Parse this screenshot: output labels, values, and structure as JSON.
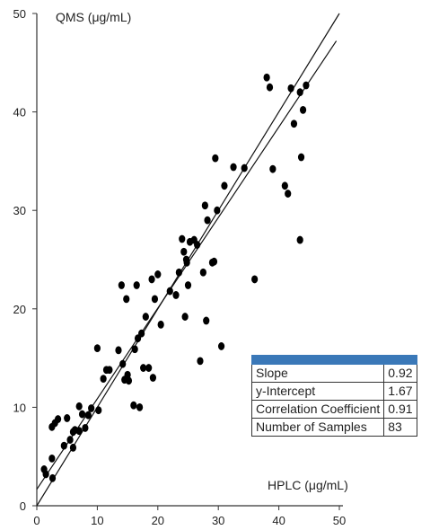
{
  "chart_data": {
    "type": "scatter",
    "xlabel": "HPLC (μg/mL)",
    "ylabel": "QMS (μg/mL)",
    "xlim": [
      0,
      50
    ],
    "ylim": [
      0,
      50
    ],
    "xticks": [
      0,
      10,
      20,
      30,
      40,
      50
    ],
    "yticks": [
      0,
      10,
      20,
      30,
      40,
      50
    ],
    "grid": false,
    "series": [
      {
        "x": [
          1.2,
          1.5,
          2.5,
          2.5,
          2.6,
          3.0,
          3.5,
          4.5,
          5.0,
          5.5,
          6.0,
          6.0,
          6.3,
          7.0,
          7.0,
          7.5,
          8.0,
          8.5,
          9.0,
          10.0,
          10.2,
          11.0,
          11.5,
          12.0,
          13.5,
          14.0,
          14.2,
          14.5,
          14.8,
          15.0,
          15.2,
          16.0,
          16.2,
          16.5,
          16.7,
          17.0,
          17.3,
          17.6,
          18.0,
          18.5,
          19.0,
          19.2,
          19.5,
          20.0,
          20.5,
          22.0,
          23.0,
          23.5,
          24.0,
          24.3,
          24.5,
          24.7,
          24.8,
          25.0,
          25.3,
          26.0,
          26.5,
          27.0,
          27.5,
          27.8,
          28.0,
          28.2,
          29.0,
          29.3,
          29.5,
          29.8,
          30.5,
          31.0,
          32.5,
          36.0,
          38.0,
          38.5,
          39.0,
          41.0,
          41.5,
          42.0,
          42.5,
          43.5,
          43.7,
          43.5,
          44.0,
          44.5,
          34.3
        ],
        "y": [
          3.7,
          3.2,
          4.8,
          8.0,
          2.8,
          8.4,
          8.8,
          6.1,
          8.9,
          6.7,
          5.9,
          7.5,
          7.7,
          10.1,
          7.6,
          9.3,
          7.9,
          9.2,
          9.9,
          16.0,
          9.7,
          12.9,
          13.8,
          13.8,
          15.8,
          22.4,
          14.4,
          12.8,
          21.0,
          13.3,
          12.7,
          10.2,
          15.9,
          22.4,
          17.0,
          10.0,
          17.5,
          14.0,
          19.2,
          14.0,
          23.0,
          13.0,
          21.0,
          23.5,
          18.4,
          21.8,
          21.4,
          23.7,
          27.1,
          25.8,
          19.2,
          25.0,
          24.7,
          22.4,
          26.8,
          27.0,
          26.5,
          14.7,
          23.7,
          30.5,
          18.8,
          29.0,
          24.7,
          24.8,
          35.3,
          30.0,
          16.2,
          32.5,
          34.4,
          23.0,
          43.5,
          42.5,
          34.2,
          32.5,
          31.7,
          42.4,
          38.8,
          42.0,
          35.4,
          27.0,
          40.2,
          42.7,
          34.3
        ]
      }
    ],
    "regression": {
      "slope": 0.92,
      "intercept": 1.67
    },
    "table": {
      "rows": [
        {
          "label": "Slope",
          "value": "0.92"
        },
        {
          "label": "y-Intercept",
          "value": "1.67"
        },
        {
          "label": "Correlation Coefficient",
          "value": "0.91"
        },
        {
          "label": "Number of Samples",
          "value": "83"
        }
      ]
    }
  }
}
